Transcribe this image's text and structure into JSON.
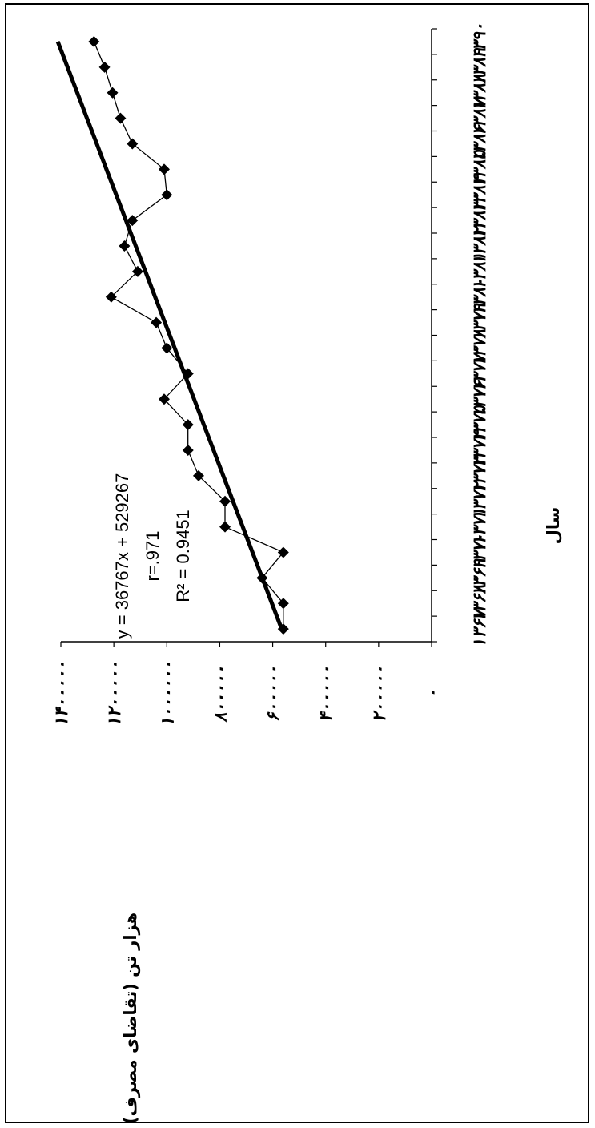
{
  "chart_data": {
    "type": "line",
    "title": "",
    "xlabel": "سال",
    "ylabel": "(تقاضای مصرف) هزار تن",
    "x": [
      "۱۳۶۷",
      "۱۳۶۸",
      "۱۳۶۹",
      "۱۳۷۰",
      "۱۳۷۱",
      "۱۳۷۲",
      "۱۳۷۳",
      "۱۳۷۴",
      "۱۳۷۵",
      "۱۳۷۶",
      "۱۳۷۷",
      "۱۳۷۸",
      "۱۳۷۹",
      "۱۳۸۰",
      "۱۳۸۱",
      "۱۳۸۲",
      "۱۳۸۳",
      "۱۳۸۴",
      "۱۳۸۵",
      "۱۳۸۶",
      "۱۳۸۷",
      "۱۳۸۸",
      "۱۳۸۹",
      "۱۳۹۰"
    ],
    "ylim": [
      0,
      1400000
    ],
    "y_ticks": [
      0,
      200000,
      400000,
      600000,
      800000,
      1000000,
      1200000,
      1400000
    ],
    "y_tick_labels": [
      "۰",
      "۲۰۰۰۰۰",
      "۴۰۰۰۰۰",
      "۶۰۰۰۰۰",
      "۸۰۰۰۰۰",
      "۱۰۰۰۰۰۰",
      "۱۲۰۰۰۰۰",
      "۱۴۰۰۰۰۰"
    ],
    "series": [
      {
        "kind": "observed",
        "values": [
          560000,
          560000,
          640000,
          560000,
          780000,
          780000,
          880000,
          920000,
          920000,
          1010000,
          920000,
          1000000,
          1040000,
          1210000,
          1110000,
          1160000,
          1130000,
          1000000,
          1010000,
          1130000,
          1175000,
          1205000,
          1235000,
          1275000
        ]
      },
      {
        "kind": "trend",
        "values": [
          566034,
          602801,
          639568,
          676335,
          713102,
          749869,
          786636,
          823403,
          860170,
          896937,
          933704,
          970471,
          1007238,
          1044005,
          1080772,
          1117539,
          1154306,
          1191073,
          1227840,
          1264607,
          1301374,
          1338141,
          1374908,
          1411675
        ]
      }
    ],
    "annotations": [
      "y = 36767x + 529267",
      "r=.971",
      "R² = 0.9451"
    ],
    "grid": false,
    "legend": "none",
    "colors": {
      "observed": "#000000",
      "trend": "#000000",
      "marker": "#000000"
    },
    "marker_icon": "diamond-icon"
  }
}
